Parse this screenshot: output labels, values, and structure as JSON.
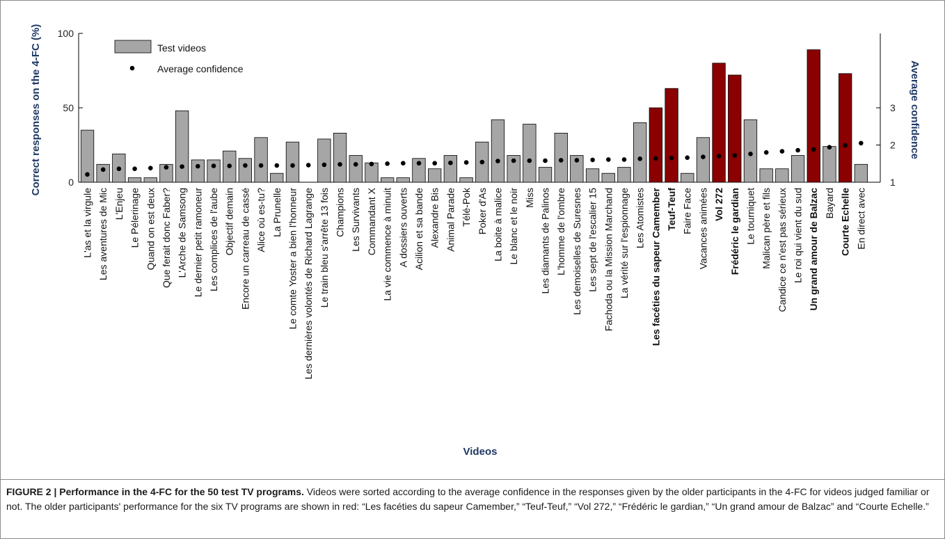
{
  "chart_data": {
    "type": "bar",
    "title": "",
    "xlabel": "Videos",
    "ylabel": "Correct responses on the 4-FC (%)",
    "y2label": "Average confidence",
    "ylim": [
      0,
      100
    ],
    "y2lim": [
      1,
      5
    ],
    "yticks": [
      "0",
      "50",
      "100"
    ],
    "y2ticks": [
      "1",
      "2",
      "3"
    ],
    "legend": {
      "position": "top-left",
      "bars_label": "Test videos",
      "points_label": "Average confidence"
    },
    "colors": {
      "normal": "#a6a6a6",
      "highlight": "#8b0000",
      "edge": "#000000"
    },
    "categories": [
      "L'as et la virgule",
      "Les aventures de Mic",
      "L'Enjeu",
      "Le Pélerinage",
      "Quand on est deux",
      "Que ferait donc Faber?",
      "L'Arche de Samsong",
      "Le dernier petit ramoneur",
      "Les complices de l'aube",
      "Objectif demain",
      "Encore un carreau de cassé",
      "Alice où es-tu?",
      "La Prunelle",
      "Le comte Yoster a bien l'honneur",
      "Les dernières volontés de Richard Lagrange",
      "Le train bleu s'arrête 13 fois",
      "Champions",
      "Les Survivants",
      "Commandant X",
      "La vie commence à minuit",
      "A dossiers ouverts",
      "Acilion et sa bande",
      "Alexandre Bis",
      "Animal Parade",
      "Télé-Pok",
      "Poker d'As",
      "La boite à malice",
      "Le blanc et le noir",
      "Miss",
      "Les diamants de Palinos",
      "L'homme de l'ombre",
      "Les demoiselles de Suresnes",
      "Les sept de l'escalier 15",
      "Fachoda ou la Mission Marchand",
      "La vérité sur l'espionnage",
      "Les Atomistes",
      "Les facéties du sapeur Camember",
      "Teuf-Teuf",
      "Faire Face",
      "Vacances animées",
      "Vol 272",
      "Frédéric le gardian",
      "Le tourniquet",
      "Malican père et fils",
      "Candice ce n'est pas sérieux",
      "Le roi qui vient du sud",
      "Un grand amour de Balzac",
      "Bayard",
      "Courte Echelle",
      "En direct avec"
    ],
    "values": [
      35,
      12,
      19,
      3,
      3,
      12,
      48,
      15,
      15,
      21,
      16,
      30,
      6,
      27,
      0,
      29,
      33,
      18,
      13,
      3,
      3,
      16,
      9,
      18,
      3,
      27,
      42,
      18,
      39,
      10,
      33,
      18,
      9,
      6,
      10,
      40,
      50,
      63,
      6,
      30,
      80,
      72,
      42,
      9,
      9,
      18,
      89,
      24,
      73,
      12
    ],
    "confidence": [
      1.21,
      1.34,
      1.36,
      1.36,
      1.38,
      1.4,
      1.42,
      1.43,
      1.44,
      1.44,
      1.45,
      1.45,
      1.45,
      1.45,
      1.46,
      1.47,
      1.48,
      1.48,
      1.49,
      1.5,
      1.51,
      1.51,
      1.51,
      1.52,
      1.53,
      1.54,
      1.57,
      1.58,
      1.58,
      1.58,
      1.59,
      1.59,
      1.6,
      1.61,
      1.61,
      1.63,
      1.64,
      1.65,
      1.66,
      1.68,
      1.7,
      1.72,
      1.76,
      1.8,
      1.83,
      1.86,
      1.88,
      1.94,
      1.99,
      2.05
    ],
    "highlighted": [
      "Les facéties du sapeur Camember",
      "Teuf-Teuf",
      "Vol 272",
      "Frédéric le gardian",
      "Un grand amour de Balzac",
      "Courte Echelle"
    ]
  },
  "caption": {
    "label": "FIGURE 2 | Performance in the 4-FC for the 50 test TV programs.",
    "text": " Videos were sorted according to the average confidence in the responses given by the older participants in the 4-FC for videos judged familiar or not. The older participants' performance for the six TV programs are shown in red: “Les facéties du sapeur Camember,” “Teuf-Teuf,” “Vol 272,” “Frédéric le gardian,” “Un grand amour de Balzac” and “Courte Echelle.”"
  }
}
